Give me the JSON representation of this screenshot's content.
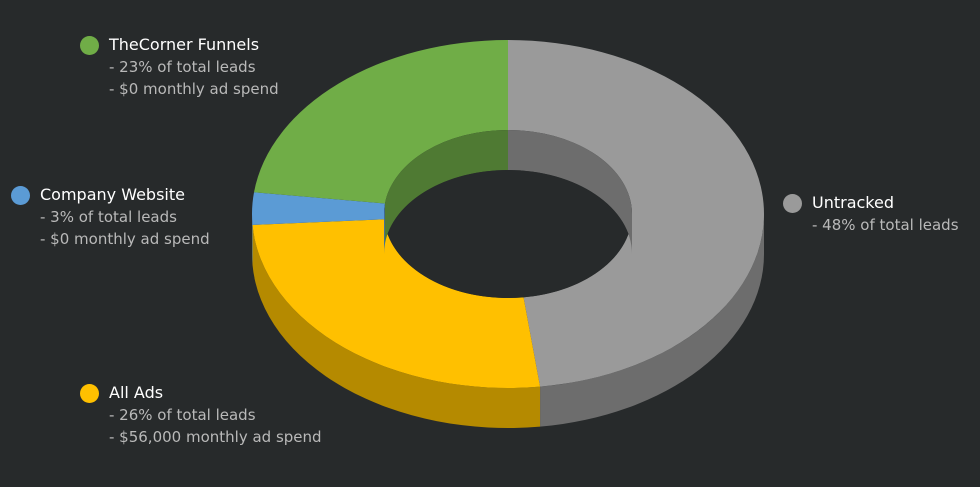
{
  "chart_data": {
    "type": "pie",
    "style": "3d-donut",
    "title": "",
    "slices": [
      {
        "label": "Untracked",
        "percent": 48,
        "color": "#9a9a9a",
        "side_color": "#6d6d6d",
        "details": [
          "- 48% of total leads"
        ]
      },
      {
        "label": "All Ads",
        "percent": 26,
        "color": "#ffc000",
        "side_color": "#b58a00",
        "details": [
          "- 26% of total leads",
          "- $56,000 monthly ad spend"
        ]
      },
      {
        "label": "Company Website",
        "percent": 3,
        "color": "#5b9bd5",
        "side_color": "#416f99",
        "details": [
          "- 3% of total leads",
          "- $0 monthly ad spend"
        ]
      },
      {
        "label": "TheCorner Funnels",
        "percent": 23,
        "color": "#70ad47",
        "side_color": "#4f7a33",
        "details": [
          "- 23% of total leads",
          "- $0 monthly ad spend"
        ]
      }
    ]
  }
}
